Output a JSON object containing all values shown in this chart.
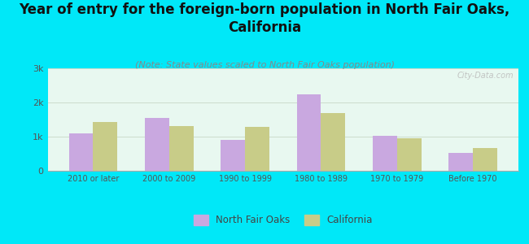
{
  "title": "Year of entry for the foreign-born population in North Fair Oaks,\nCalifornia",
  "subtitle": "(Note: State values scaled to North Fair Oaks population)",
  "categories": [
    "2010 or later",
    "2000 to 2009",
    "1990 to 1999",
    "1980 to 1989",
    "1970 to 1979",
    "Before 1970"
  ],
  "north_fair_oaks": [
    1100,
    1550,
    900,
    2250,
    1020,
    520
  ],
  "california": [
    1420,
    1300,
    1280,
    1700,
    960,
    670
  ],
  "bar_color_nfo": "#c9a8e0",
  "bar_color_ca": "#c8cc88",
  "background_outer": "#00e8f8",
  "background_plot_top": "#e8f8f0",
  "background_plot_bottom": "#d4ecc0",
  "ylim": [
    0,
    3000
  ],
  "yticks": [
    0,
    1000,
    2000,
    3000
  ],
  "ytick_labels": [
    "0",
    "1k",
    "2k",
    "3k"
  ],
  "legend_nfo": "North Fair Oaks",
  "legend_ca": "California",
  "title_fontsize": 12,
  "subtitle_fontsize": 8,
  "watermark": "City-Data.com",
  "grid_color": "#ccddcc"
}
